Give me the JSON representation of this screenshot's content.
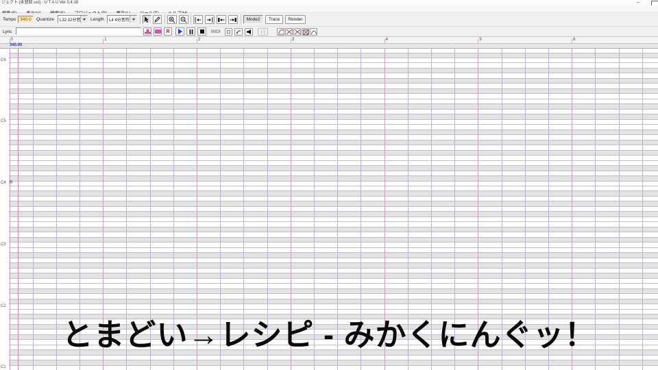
{
  "window": {
    "title": "ジェクト (未登録.ust) - U T A U  Ver 0.4.18",
    "minimize_label": "–"
  },
  "menu": {
    "items": [
      "編集(E)",
      "表示(V)",
      "検索(S)",
      "プロジェクト(P)",
      "再生(L)",
      "ツール(T)",
      "ヘルプ(H)"
    ]
  },
  "toolbar1": {
    "tempo_label": "Tempo",
    "tempo_value": "340.0",
    "quantize_label": "Quantize",
    "quantize_value": "L32 32分音符",
    "length_label": "Length",
    "length_value": "L4 4分音符",
    "mode_button": "Mode2",
    "trace_button": "Trace",
    "render_button": "Render",
    "icon_buttons": [
      "select-tool",
      "pencil-tool",
      "zoom-in",
      "zoom-out",
      "go-to-start",
      "go-to-end",
      "previous-part",
      "next-part"
    ]
  },
  "toolbar2": {
    "lyric_label": "Lyric",
    "lyric_value": "",
    "midi_label": "MIDI",
    "icon_buttons": [
      "lyric-stamp",
      "lyric-fill",
      "lyric-rest",
      "play",
      "pause",
      "stop",
      "record-dot",
      "loop",
      "speaker",
      "region-play",
      "envelope-1",
      "envelope-2",
      "envelope-3",
      "envelope-4",
      "envelope-5"
    ]
  },
  "ruler": {
    "measure_numbers": [
      "0",
      "1",
      "2",
      "3",
      "4",
      "5",
      "6"
    ],
    "tempo_marker": "340.00"
  },
  "pianoroll": {
    "octave_labels": [
      "C6",
      "C5",
      "C4",
      "C3",
      "C2",
      "C1"
    ],
    "rest_note": "R"
  },
  "overlay_title": "とまどい→レシピ - みかくにんぐッ！",
  "colors": {
    "measure_line": "#ea8ed2",
    "beat_line": "#b6b2e2",
    "playhead": "#e673c8",
    "tempo_marker_text": "#2a2ac4",
    "play_icon": "#2238d8",
    "lyric_icon": "#e24fae",
    "white_row": "#fefefe",
    "black_row": "#e3e3e6",
    "tempo_box_bg": "#ffeab6",
    "tempo_box_text": "#a43c00"
  }
}
